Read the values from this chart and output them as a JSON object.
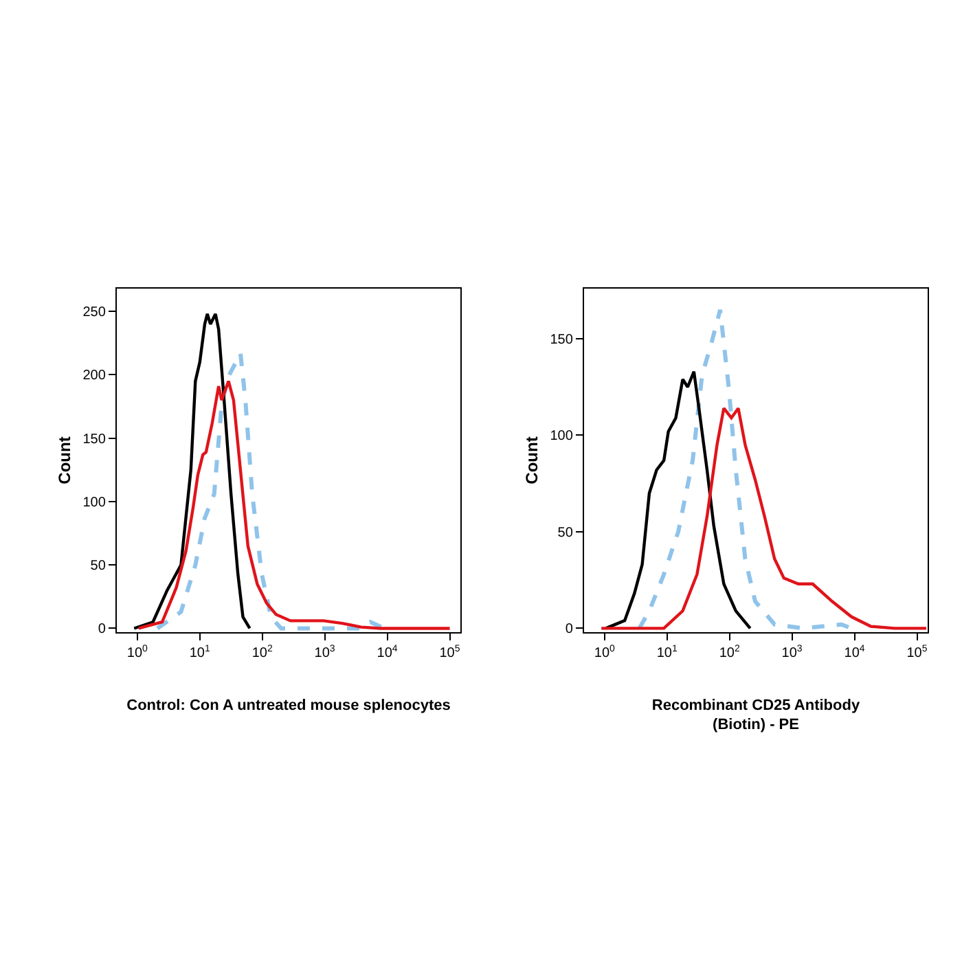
{
  "chart_data": [
    {
      "type": "line",
      "xlabel": "Control: Con A untreated mouse splenocytes",
      "ylabel": "Count",
      "log": "x",
      "grid": false,
      "marker": "none",
      "xlim": [
        0.47,
        148000
      ],
      "ylim": [
        -3,
        268
      ],
      "xticks": [
        {
          "value": 1,
          "label": "10$^{0}$"
        },
        {
          "value": 10,
          "label": "10$^{1}$"
        },
        {
          "value": 100,
          "label": "10$^{2}$"
        },
        {
          "value": 1000,
          "label": "10$^{3}$"
        },
        {
          "value": 10000,
          "label": "10$^{4}$"
        },
        {
          "value": 100000,
          "label": "10$^{5}$"
        }
      ],
      "yticks": [
        0,
        50,
        100,
        150,
        200,
        250
      ],
      "series": [
        {
          "color": "#8fc3ea",
          "line_style": "dashed",
          "x": [
            2.1,
            5.0,
            8.5,
            12,
            17,
            22.4,
            28.8,
            38,
            44.7,
            53.7,
            69,
            98,
            138,
            200,
            3800,
            5370,
            9120
          ],
          "values": [
            0,
            13,
            50,
            87,
            106,
            177,
            199,
            210,
            217,
            180,
            106,
            43,
            9,
            0,
            0,
            5,
            0
          ]
        },
        {
          "color": "#000000",
          "line_style": "solid",
          "x": [
            0.89,
            1.78,
            3.0,
            5.0,
            7.2,
            8.5,
            10,
            12,
            13.2,
            14.8,
            17.8,
            20,
            24.5,
            31.6,
            40.7,
            49,
            63
          ],
          "values": [
            0,
            5,
            30,
            50,
            125,
            195,
            210,
            240,
            248,
            240,
            248,
            236,
            180,
            106,
            43,
            9,
            0
          ]
        },
        {
          "color": "#e0141b",
          "line_style": "solid",
          "x": [
            1.05,
            2.5,
            4.2,
            6.0,
            7.8,
            9.3,
            11.2,
            12.6,
            15.8,
            20,
            22.4,
            28.8,
            34.7,
            44.7,
            58.9,
            83,
            117,
            166,
            282,
            955,
            1905,
            3800,
            7760,
            100000
          ],
          "values": [
            0,
            5,
            32,
            61,
            95,
            121,
            137,
            139,
            162,
            191,
            180,
            195,
            180,
            125,
            65,
            35,
            20,
            11,
            6,
            6,
            4,
            1,
            0,
            0
          ]
        }
      ]
    },
    {
      "type": "line",
      "xlabel": "Recombinant CD25 Antibody\n(Biotin) - PE",
      "ylabel": "Count",
      "log": "x",
      "grid": false,
      "marker": "none",
      "xlim": [
        0.47,
        148000
      ],
      "ylim": [
        -2,
        176
      ],
      "xticks": [
        {
          "value": 1,
          "label": "10$^{0}$"
        },
        {
          "value": 10,
          "label": "10$^{1}$"
        },
        {
          "value": 100,
          "label": "10$^{2}$"
        },
        {
          "value": 1000,
          "label": "10$^{3}$"
        },
        {
          "value": 10000,
          "label": "10$^{4}$"
        },
        {
          "value": 100000,
          "label": "10$^{5}$"
        }
      ],
      "yticks": [
        0,
        50,
        100,
        150
      ],
      "series": [
        {
          "color": "#8fc3ea",
          "line_style": "dashed",
          "x": [
            3.6,
            5.2,
            8.9,
            15.1,
            25.7,
            36.3,
            52.5,
            70.8,
            97.7,
            126,
            178,
            257,
            525,
            1510,
            6170,
            8910
          ],
          "values": [
            0,
            9,
            28,
            50,
            87,
            131,
            149,
            165,
            124,
            82,
            36,
            14,
            2,
            0,
            2,
            0
          ]
        },
        {
          "color": "#000000",
          "line_style": "solid",
          "x": [
            1.05,
            2.1,
            3.0,
            4.0,
            5.2,
            6.8,
            8.9,
            10.5,
            13.8,
            17.8,
            21.4,
            26.9,
            33,
            43.7,
            56,
            81,
            126,
            214
          ],
          "values": [
            0,
            4,
            18,
            33,
            70,
            82,
            87,
            102,
            109,
            129,
            125,
            133,
            112,
            82,
            53,
            23,
            9,
            0
          ]
        },
        {
          "color": "#e0141b",
          "line_style": "solid",
          "x": [
            0.89,
            8.9,
            17.8,
            30.2,
            43.7,
            63,
            81,
            107,
            138,
            178,
            257,
            363,
            525,
            741,
            1259,
            2138,
            4365,
            8913,
            18200,
            43650,
            141000
          ],
          "values": [
            0,
            0,
            9,
            28,
            58,
            95,
            114,
            109,
            114,
            95,
            77,
            58,
            36,
            26,
            23,
            23,
            14,
            6,
            1,
            0,
            0
          ]
        }
      ]
    }
  ]
}
